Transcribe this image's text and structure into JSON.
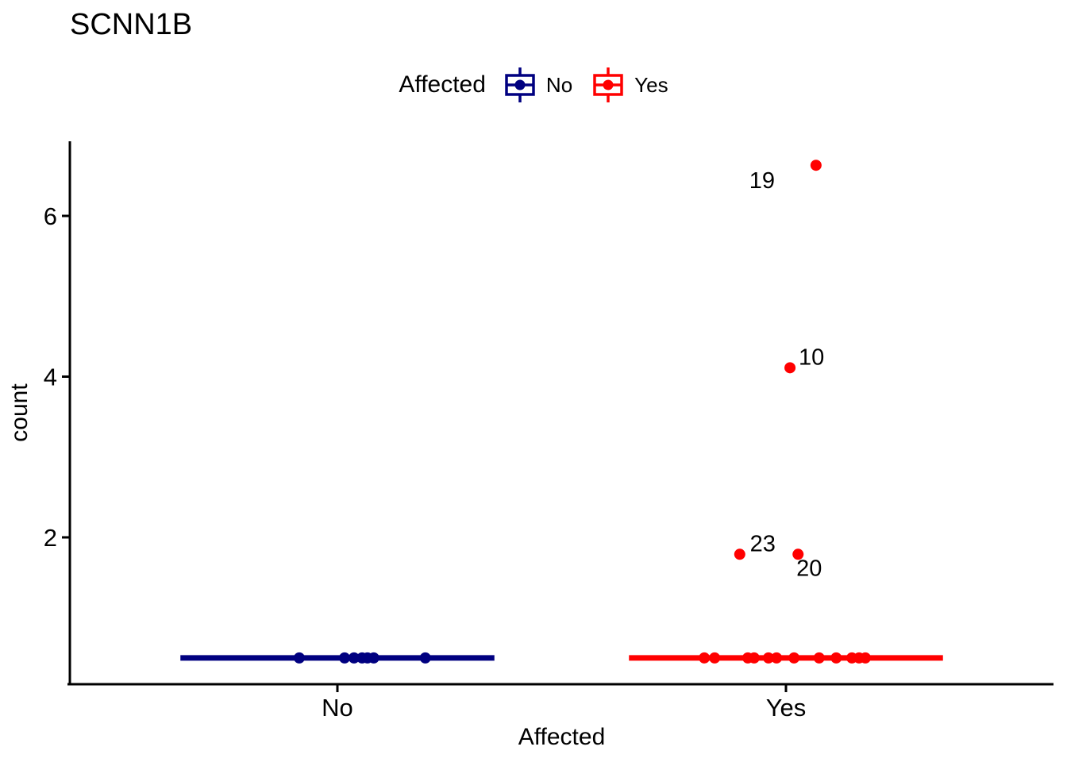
{
  "title": "SCNN1B",
  "legend": {
    "title": "Affected",
    "items": [
      {
        "label": "No",
        "color": "#000080"
      },
      {
        "label": "Yes",
        "color": "#FF0000"
      }
    ]
  },
  "chart_data": {
    "type": "boxplot_jitter",
    "title": "SCNN1B",
    "xlabel": "Affected",
    "ylabel": "count",
    "categories": [
      "No",
      "Yes"
    ],
    "y_ticks": [
      "2",
      "4",
      "6"
    ],
    "y_tick_values": [
      2,
      4,
      6
    ],
    "ylim": [
      0.17,
      6.93
    ],
    "grid": false,
    "legend_position": "top",
    "series": [
      {
        "name": "No",
        "color": "#000080",
        "median": 0.5,
        "box_halfwidth": 0.35,
        "jitter_value": 0.5,
        "jitter_offsets": [
          -0.085,
          0.016,
          0.037,
          0.055,
          0.067,
          0.081,
          0.196
        ],
        "outliers": []
      },
      {
        "name": "Yes",
        "color": "#FF0000",
        "median": 0.5,
        "box_halfwidth": 0.35,
        "jitter_value": 0.5,
        "jitter_offsets": [
          -0.182,
          -0.159,
          -0.085,
          -0.071,
          -0.039,
          -0.021,
          0.018,
          0.074,
          0.112,
          0.147,
          0.163,
          0.177
        ],
        "outliers": [
          {
            "label": "19",
            "value": 6.63,
            "x_offset": 0.067,
            "label_dx": -68,
            "label_dy": 19
          },
          {
            "label": "10",
            "value": 4.11,
            "x_offset": 0.009,
            "label_dx": 27,
            "label_dy": -14
          },
          {
            "label": "23",
            "value": 1.79,
            "x_offset": -0.103,
            "label_dx": 29,
            "label_dy": -14
          },
          {
            "label": "20",
            "value": 1.79,
            "x_offset": 0.027,
            "label_dx": 14,
            "label_dy": 17
          }
        ]
      }
    ]
  }
}
